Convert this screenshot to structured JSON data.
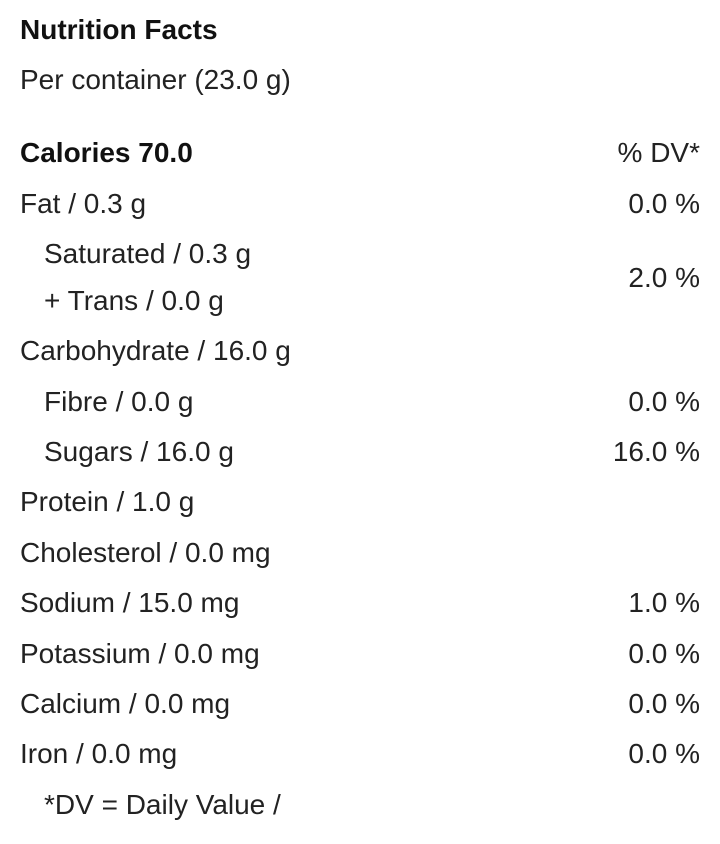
{
  "title": "Nutrition Facts",
  "per": "Per container (23.0 g)",
  "calories": "Calories 70.0",
  "dv_header": "% DV*",
  "rows": [
    {
      "label": "Fat / 0.3 g",
      "dv": "0.0 %"
    },
    {
      "label": "Saturated / 0.3 g",
      "dv": "2.0 %"
    },
    {
      "label": "+ Trans / 0.0 g"
    },
    {
      "label": "Carbohydrate / 16.0 g"
    },
    {
      "label": "Fibre / 0.0 g",
      "dv": "0.0 %"
    },
    {
      "label": "Sugars / 16.0 g",
      "dv": "16.0 %"
    },
    {
      "label": "Protein / 1.0 g"
    },
    {
      "label": "Cholesterol / 0.0 mg"
    },
    {
      "label": "Sodium / 15.0 mg",
      "dv": "1.0 %"
    },
    {
      "label": "Potassium / 0.0 mg",
      "dv": "0.0 %"
    },
    {
      "label": "Calcium / 0.0 mg",
      "dv": "0.0 %"
    },
    {
      "label": "Iron / 0.0 mg",
      "dv": "0.0 %"
    }
  ],
  "footnote": "*DV = Daily Value /"
}
